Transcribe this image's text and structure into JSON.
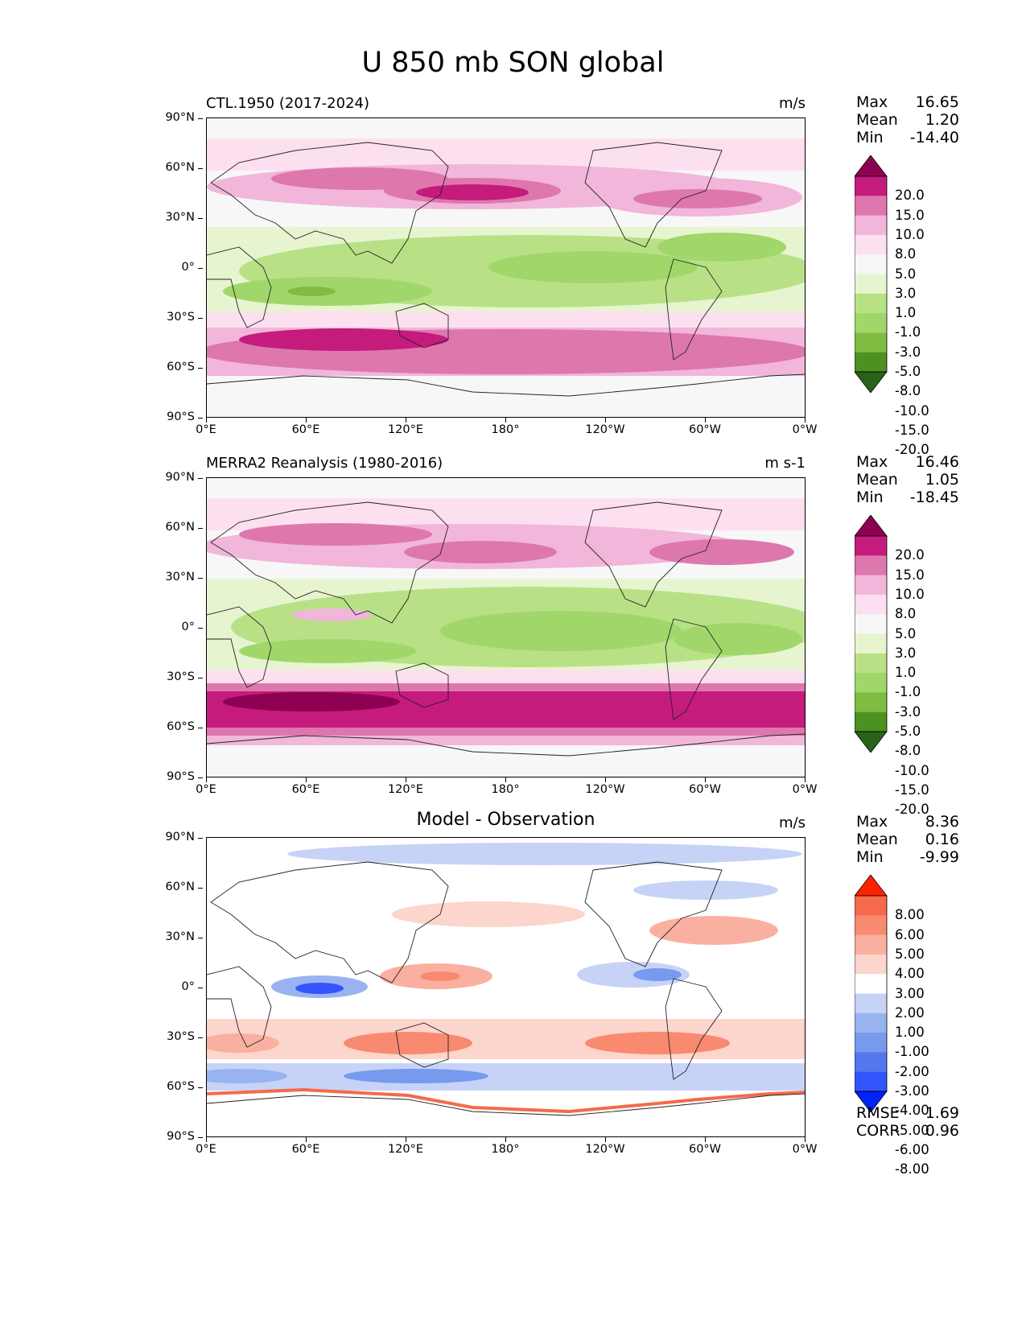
{
  "title": "U 850 mb SON global",
  "panels": [
    {
      "title": "CTL.1950 (2017-2024)",
      "units": "m/s",
      "stats": {
        "max_label": "Max",
        "max": "16.65",
        "mean_label": "Mean",
        "mean": "1.20",
        "min_label": "Min",
        "min": "-14.40"
      },
      "colorbar_labels": [
        "20.0",
        "15.0",
        "10.0",
        "8.0",
        "5.0",
        "3.0",
        "1.0",
        "-1.0",
        "-3.0",
        "-5.0",
        "-8.0",
        "-10.0",
        "-15.0",
        "-20.0"
      ]
    },
    {
      "title": "MERRA2 Reanalysis (1980-2016)",
      "units": "m s-1",
      "stats": {
        "max_label": "Max",
        "max": "16.46",
        "mean_label": "Mean",
        "mean": "1.05",
        "min_label": "Min",
        "min": "-18.45"
      },
      "colorbar_labels": [
        "20.0",
        "15.0",
        "10.0",
        "8.0",
        "5.0",
        "3.0",
        "1.0",
        "-1.0",
        "-3.0",
        "-5.0",
        "-8.0",
        "-10.0",
        "-15.0",
        "-20.0"
      ]
    },
    {
      "title": "Model - Observation",
      "units": "m/s",
      "stats": {
        "max_label": "Max",
        "max": "8.36",
        "mean_label": "Mean",
        "mean": "0.16",
        "min_label": "Min",
        "min": "-9.99"
      },
      "colorbar_labels": [
        "8.00",
        "6.00",
        "5.00",
        "4.00",
        "3.00",
        "2.00",
        "1.00",
        "-1.00",
        "-2.00",
        "-3.00",
        "-4.00",
        "-5.00",
        "-6.00",
        "-8.00"
      ],
      "metrics": {
        "rmse_label": "RMSE",
        "rmse": "1.69",
        "corr_label": "CORR",
        "corr": "0.96"
      }
    }
  ],
  "chart_data": {
    "type": "heatmap",
    "title": "U 850 mb SON global",
    "x_ticks": [
      "0°E",
      "60°E",
      "120°E",
      "180°",
      "120°W",
      "60°W",
      "0°W"
    ],
    "y_ticks": [
      "90°N",
      "60°N",
      "30°N",
      "0°",
      "30°S",
      "60°S",
      "90°S"
    ],
    "xlim": [
      0,
      360
    ],
    "ylim": [
      -90,
      90
    ],
    "field_colors": [
      "#276419",
      "#4d9221",
      "#7fbc41",
      "#a1d76a",
      "#b8e186",
      "#e6f5d0",
      "#f7f7f7",
      "#fde0ef",
      "#f1b6da",
      "#de77ae",
      "#c51b7d",
      "#8e0152"
    ],
    "diff_colors": [
      "#0022ff",
      "#3355ff",
      "#5577ee",
      "#7799ee",
      "#99b3f0",
      "#c6d3f7",
      "#ffffff",
      "#fcd5cc",
      "#fab0a0",
      "#f88a70",
      "#f46a4a",
      "#ff2200"
    ]
  }
}
